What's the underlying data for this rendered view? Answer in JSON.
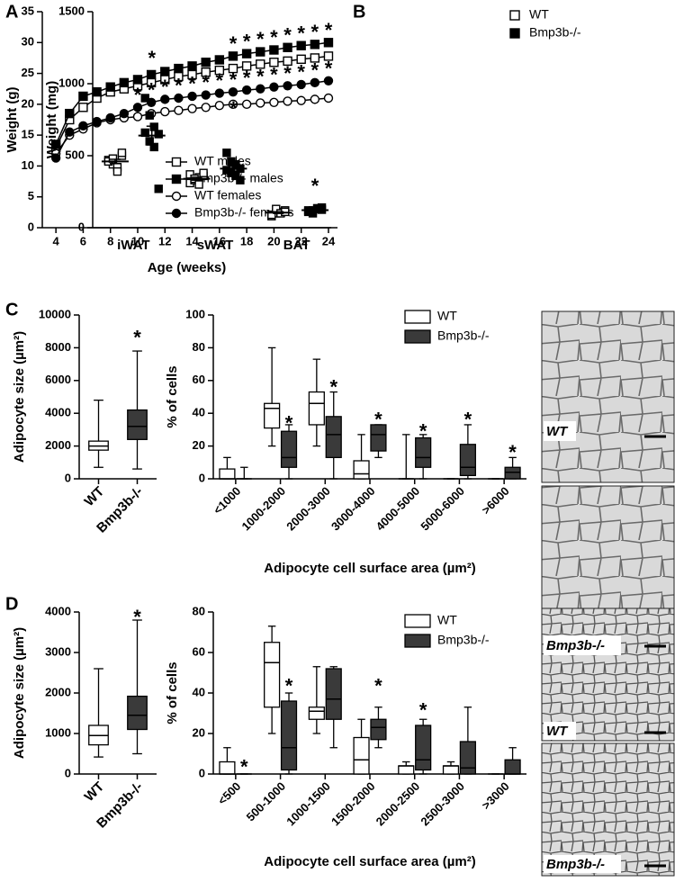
{
  "chart_data": [
    {
      "type": "line",
      "panel_label": "A",
      "x_label": "Age (weeks)",
      "y_label": "Weight (g)",
      "x": [
        4,
        5,
        6,
        7,
        8,
        9,
        10,
        11,
        12,
        13,
        14,
        15,
        16,
        17,
        18,
        19,
        20,
        21,
        22,
        23,
        24
      ],
      "xlim": [
        3,
        24.2
      ],
      "xticks": [
        4,
        6,
        8,
        10,
        12,
        14,
        16,
        18,
        20,
        22,
        24
      ],
      "ylim": [
        0,
        35
      ],
      "yticks": [
        0,
        5,
        10,
        15,
        20,
        25,
        30,
        35
      ],
      "legend": "lower right",
      "series": [
        {
          "name": "WT males",
          "color": "#000000",
          "marker": "square",
          "filled": false,
          "values": [
            13,
            17.5,
            19.5,
            21,
            22,
            22.5,
            23,
            23.5,
            24,
            24.5,
            24.8,
            25.2,
            25.5,
            25.8,
            26.2,
            26.5,
            26.8,
            27,
            27.3,
            27.5,
            27.8
          ]
        },
        {
          "name": "Bmp3b-/- males",
          "color": "#000000",
          "marker": "square",
          "filled": true,
          "values": [
            13.5,
            18.5,
            21.3,
            22,
            22.8,
            23.5,
            24,
            24.8,
            25.3,
            25.8,
            26.2,
            26.8,
            27.2,
            27.8,
            28.2,
            28.5,
            28.8,
            29.2,
            29.5,
            29.7,
            30
          ]
        },
        {
          "name": "WT females",
          "color": "#000000",
          "marker": "circle",
          "filled": false,
          "values": [
            12,
            15,
            16,
            17,
            17.5,
            17.8,
            18,
            18.5,
            18.8,
            19,
            19.3,
            19.5,
            19.8,
            20,
            20,
            20.2,
            20.3,
            20.5,
            20.6,
            20.8,
            21
          ]
        },
        {
          "name": "Bmp3b-/- females",
          "color": "#000000",
          "marker": "circle",
          "filled": true,
          "values": [
            11.3,
            15.5,
            16.5,
            17.2,
            17.8,
            18.5,
            19.5,
            20.3,
            20.8,
            21,
            21.3,
            21.5,
            21.8,
            22,
            22.3,
            22.5,
            22.8,
            23,
            23.2,
            23.5,
            23.8
          ]
        }
      ],
      "annotations": [
        {
          "text": "*",
          "x": 17,
          "y": 30.3
        },
        {
          "text": "*",
          "x": 18,
          "y": 30.7
        },
        {
          "text": "*",
          "x": 19,
          "y": 31
        },
        {
          "text": "*",
          "x": 20,
          "y": 31.3
        },
        {
          "text": "*",
          "x": 21,
          "y": 31.7
        },
        {
          "text": "*",
          "x": 22,
          "y": 32
        },
        {
          "text": "*",
          "x": 23,
          "y": 32.2
        },
        {
          "text": "*",
          "x": 24,
          "y": 32.5
        },
        {
          "text": "*",
          "x": 10,
          "y": 22
        },
        {
          "text": "*",
          "x": 11,
          "y": 22.8
        },
        {
          "text": "*",
          "x": 12,
          "y": 23.3
        },
        {
          "text": "*",
          "x": 13,
          "y": 23.5
        },
        {
          "text": "*",
          "x": 14,
          "y": 23.8
        },
        {
          "text": "*",
          "x": 15,
          "y": 24
        },
        {
          "text": "*",
          "x": 16,
          "y": 24.3
        },
        {
          "text": "*",
          "x": 17,
          "y": 24.5
        },
        {
          "text": "*",
          "x": 18,
          "y": 24.8
        },
        {
          "text": "*",
          "x": 19,
          "y": 25
        },
        {
          "text": "*",
          "x": 20,
          "y": 25.3
        },
        {
          "text": "*",
          "x": 21,
          "y": 25.5
        },
        {
          "text": "*",
          "x": 22,
          "y": 25.7
        },
        {
          "text": "*",
          "x": 23,
          "y": 26
        },
        {
          "text": "*",
          "x": 24,
          "y": 26.3
        }
      ]
    },
    {
      "type": "strip",
      "panel_label": "B",
      "y_label": "Weight (mg)",
      "categories": [
        "iWAT",
        "sWAT",
        "BAT"
      ],
      "ylim": [
        0,
        1500
      ],
      "yticks": [
        0,
        500,
        1000,
        1500
      ],
      "legend": "upper right",
      "series": [
        {
          "name": "WT",
          "color": "#000000",
          "marker": "square",
          "filled": false,
          "values": [
            [
              470,
              440,
              420,
              500,
              460,
              480,
              390,
              520
            ],
            [
              310,
              330,
              350,
              360,
              370,
              340,
              300,
              380
            ],
            [
              80,
              100,
              110,
              120,
              90,
              130,
              100,
              110
            ]
          ],
          "mean": [
            460,
            340,
            105
          ],
          "sem": [
            15,
            10,
            6
          ]
        },
        {
          "name": "Bmp3b-/-",
          "color": "#000000",
          "marker": "square",
          "filled": true,
          "values": [
            [
              900,
              780,
              700,
              650,
              660,
              600,
              560,
              270
            ],
            [
              520,
              460,
              440,
              410,
              400,
              380,
              360,
              330
            ],
            [
              110,
              120,
              130,
              140,
              120,
              100,
              135,
              125
            ]
          ],
          "mean": [
            640,
            410,
            122
          ],
          "sem": [
            65,
            20,
            5
          ]
        }
      ],
      "annotations": [
        {
          "text": "*",
          "x": "iWAT",
          "y": 1200
        },
        {
          "text": "*",
          "x": "sWAT",
          "y": 850
        },
        {
          "text": "*",
          "x": "BAT",
          "y": 310
        }
      ]
    },
    {
      "type": "box",
      "panel_label": "C",
      "y_label": "Adipocyte size (µm²)",
      "categories": [
        "WT",
        "Bmp3b-/-"
      ],
      "colors": [
        "#ffffff",
        "#3a3a3a"
      ],
      "ylim": [
        0,
        10000
      ],
      "yticks": [
        0,
        2000,
        4000,
        6000,
        8000,
        10000
      ],
      "values": [
        {
          "min": 700,
          "q1": 1750,
          "median": 2000,
          "q3": 2300,
          "max": 4800
        },
        {
          "min": 600,
          "q1": 2400,
          "median": 3200,
          "q3": 4200,
          "max": 7800
        }
      ],
      "annotations": [
        {
          "text": "*",
          "x": "Bmp3b-/-",
          "y": 8800
        }
      ]
    },
    {
      "type": "box",
      "y_label": "% of cells",
      "x_label": "Adipocyte cell surface area (µm²)",
      "categories": [
        "<1000",
        "1000-2000",
        "2000-3000",
        "3000-4000",
        "4000-5000",
        "5000-6000",
        ">6000"
      ],
      "ylim": [
        0,
        100
      ],
      "yticks": [
        0,
        20,
        40,
        60,
        80,
        100
      ],
      "legend": "upper right",
      "series": [
        {
          "name": "WT",
          "color": "#ffffff",
          "values": [
            {
              "min": 0,
              "q1": 0,
              "median": 0,
              "q3": 6,
              "max": 13
            },
            {
              "min": 20,
              "q1": 31,
              "median": 43,
              "q3": 46,
              "max": 80
            },
            {
              "min": 20,
              "q1": 33,
              "median": 46,
              "q3": 53,
              "max": 73
            },
            {
              "min": 0,
              "q1": 0,
              "median": 3,
              "q3": 11,
              "max": 27
            },
            {
              "min": 0,
              "q1": 0,
              "median": 0,
              "q3": 0,
              "max": 27
            },
            {
              "min": 0,
              "q1": 0,
              "median": 0,
              "q3": 0,
              "max": 0
            },
            {
              "min": 0,
              "q1": 0,
              "median": 0,
              "q3": 0,
              "max": 0
            }
          ]
        },
        {
          "name": "Bmp3b-/-",
          "color": "#3a3a3a",
          "values": [
            {
              "min": 0,
              "q1": 0,
              "median": 0,
              "q3": 0,
              "max": 7
            },
            {
              "min": 0,
              "q1": 7,
              "median": 13,
              "q3": 29,
              "max": 33
            },
            {
              "min": 0,
              "q1": 13,
              "median": 27,
              "q3": 38,
              "max": 53
            },
            {
              "min": 13,
              "q1": 17,
              "median": 27,
              "q3": 33,
              "max": 33
            },
            {
              "min": 0,
              "q1": 7,
              "median": 13,
              "q3": 25,
              "max": 27
            },
            {
              "min": 0,
              "q1": 2,
              "median": 7,
              "q3": 21,
              "max": 33
            },
            {
              "min": 0,
              "q1": 0,
              "median": 4,
              "q3": 7,
              "max": 13
            }
          ]
        }
      ],
      "annotations": [
        {
          "text": "*",
          "x": "1000-2000",
          "y": 36
        },
        {
          "text": "*",
          "x": "2000-3000",
          "y": 58
        },
        {
          "text": "*",
          "x": "3000-4000",
          "y": 38
        },
        {
          "text": "*",
          "x": "4000-5000",
          "y": 31
        },
        {
          "text": "*",
          "x": "5000-6000",
          "y": 38
        },
        {
          "text": "*",
          "x": ">6000",
          "y": 18
        }
      ]
    },
    {
      "type": "box",
      "panel_label": "D",
      "y_label": "Adipocyte size (µm²)",
      "categories": [
        "WT",
        "Bmp3b-/-"
      ],
      "colors": [
        "#ffffff",
        "#3a3a3a"
      ],
      "ylim": [
        0,
        4000
      ],
      "yticks": [
        0,
        1000,
        2000,
        3000,
        4000
      ],
      "values": [
        {
          "min": 420,
          "q1": 720,
          "median": 950,
          "q3": 1200,
          "max": 2600
        },
        {
          "min": 500,
          "q1": 1100,
          "median": 1450,
          "q3": 1920,
          "max": 3800
        }
      ],
      "annotations": [
        {
          "text": "*",
          "x": "Bmp3b-/-",
          "y": 3950
        }
      ]
    },
    {
      "type": "box",
      "y_label": "% of cells",
      "x_label": "Adipocyte cell surface area (µm²)",
      "categories": [
        "<500",
        "500-1000",
        "1000-1500",
        "1500-2000",
        "2000-2500",
        "2500-3000",
        ">3000"
      ],
      "ylim": [
        0,
        80
      ],
      "yticks": [
        0,
        20,
        40,
        60,
        80
      ],
      "legend": "upper right",
      "series": [
        {
          "name": "WT",
          "color": "#ffffff",
          "values": [
            {
              "min": 0,
              "q1": 0,
              "median": 0,
              "q3": 6,
              "max": 13
            },
            {
              "min": 20,
              "q1": 33,
              "median": 55,
              "q3": 65,
              "max": 73
            },
            {
              "min": 20,
              "q1": 27,
              "median": 31,
              "q3": 33,
              "max": 53
            },
            {
              "min": 0,
              "q1": 0,
              "median": 7,
              "q3": 18,
              "max": 27
            },
            {
              "min": 0,
              "q1": 0,
              "median": 4,
              "q3": 4,
              "max": 6
            },
            {
              "min": 0,
              "q1": 0,
              "median": 4,
              "q3": 4,
              "max": 6
            },
            {
              "min": 0,
              "q1": 0,
              "median": 0,
              "q3": 0,
              "max": 0
            }
          ]
        },
        {
          "name": "Bmp3b-/-",
          "color": "#3a3a3a",
          "values": [
            {
              "min": 0,
              "q1": 0,
              "median": 0,
              "q3": 0,
              "max": 0
            },
            {
              "min": 0,
              "q1": 2,
              "median": 13,
              "q3": 36,
              "max": 40
            },
            {
              "min": 13,
              "q1": 27,
              "median": 37,
              "q3": 52,
              "max": 53
            },
            {
              "min": 13,
              "q1": 17,
              "median": 23,
              "q3": 27,
              "max": 33
            },
            {
              "min": 0,
              "q1": 2,
              "median": 7,
              "q3": 24,
              "max": 27
            },
            {
              "min": 0,
              "q1": 0,
              "median": 3,
              "q3": 16,
              "max": 33
            },
            {
              "min": 0,
              "q1": 0,
              "median": 0,
              "q3": 7,
              "max": 13
            }
          ]
        }
      ],
      "annotations": [
        {
          "text": "*",
          "x": "<500",
          "y": 5
        },
        {
          "text": "*",
          "x": "500-1000",
          "y": 45
        },
        {
          "text": "*",
          "x": "1500-2000",
          "y": 45
        },
        {
          "text": "*",
          "x": "2000-2500",
          "y": 33
        }
      ]
    }
  ],
  "images": [
    {
      "label": "WT"
    },
    {
      "label": "Bmp3b-/-"
    },
    {
      "label": "WT"
    },
    {
      "label": "Bmp3b-/-"
    }
  ]
}
